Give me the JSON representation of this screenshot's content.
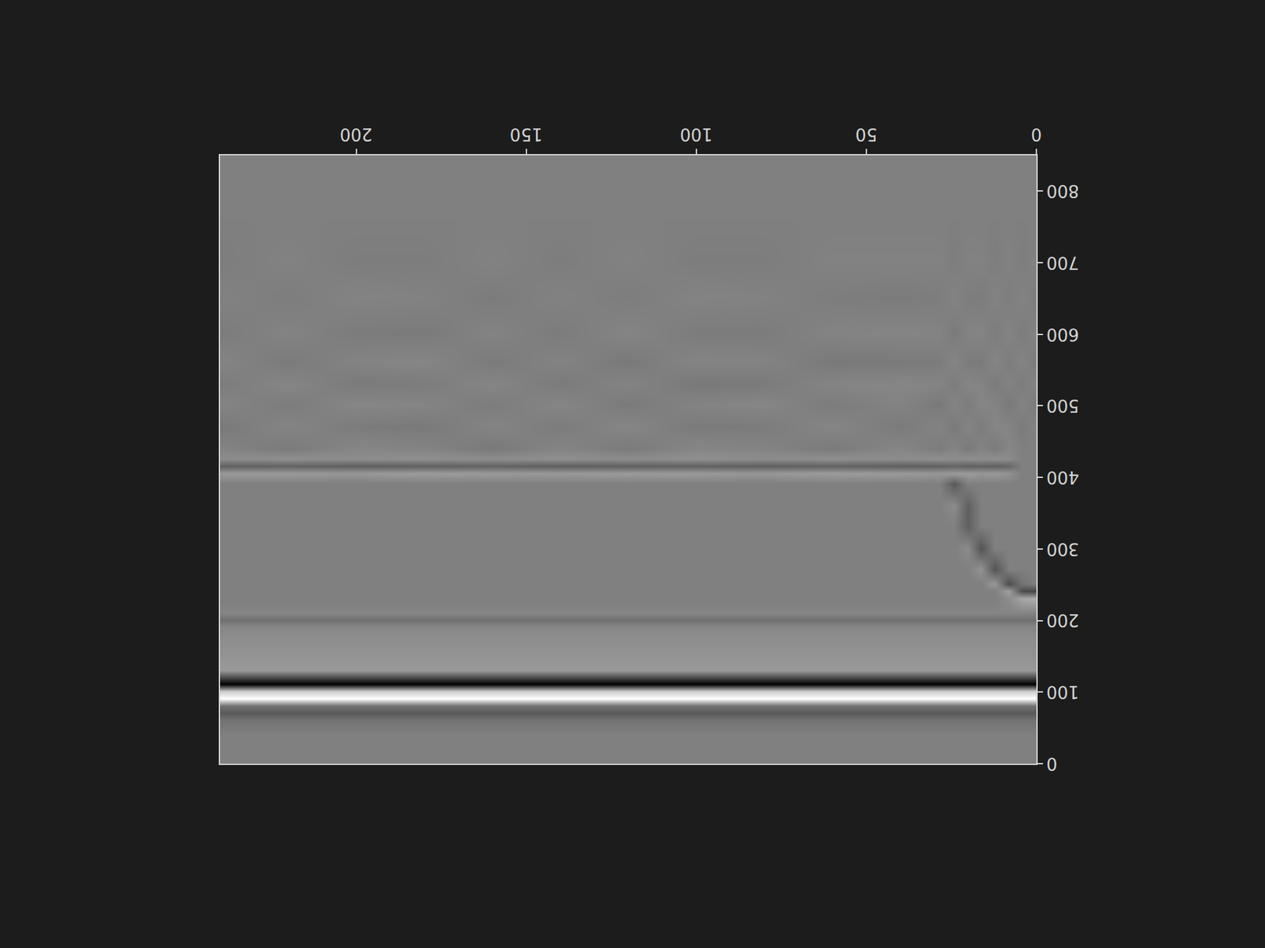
{
  "chart_data": {
    "type": "heatmap",
    "x": [
      0,
      4,
      8,
      12,
      16,
      20,
      24,
      28,
      40,
      60,
      80,
      100,
      120,
      140,
      160,
      180,
      200,
      220,
      240
    ],
    "y": [
      0,
      20,
      40,
      60,
      70,
      80,
      90,
      100,
      110,
      120,
      130,
      150,
      170,
      190,
      200,
      210,
      230,
      240,
      250,
      270,
      300,
      330,
      360,
      390,
      405,
      415,
      425,
      440,
      470,
      500,
      530,
      560,
      600,
      650,
      700,
      760,
      850
    ],
    "z": [
      [
        0,
        0,
        0,
        0,
        0,
        0,
        0,
        0,
        0,
        0,
        0,
        0,
        0,
        0,
        0,
        0,
        0,
        0,
        0
      ],
      [
        0,
        0,
        0,
        0,
        0,
        0,
        0,
        0,
        0,
        0,
        0,
        0,
        0,
        0,
        0,
        0,
        0,
        0,
        0
      ],
      [
        0,
        0,
        0,
        0,
        0,
        0,
        0,
        0,
        0,
        0,
        0,
        0,
        0,
        0,
        0,
        0,
        0,
        0,
        0
      ],
      [
        -0.1,
        -0.1,
        -0.1,
        -0.1,
        -0.1,
        -0.1,
        -0.1,
        -0.1,
        -0.1,
        -0.1,
        -0.1,
        -0.1,
        -0.1,
        -0.1,
        -0.1,
        -0.1,
        -0.1,
        -0.1,
        -0.1
      ],
      [
        -0.3,
        -0.3,
        -0.3,
        -0.3,
        -0.3,
        -0.3,
        -0.3,
        -0.3,
        -0.3,
        -0.3,
        -0.3,
        -0.3,
        -0.3,
        -0.3,
        -0.3,
        -0.3,
        -0.3,
        -0.3,
        -0.3
      ],
      [
        -0.1,
        -0.1,
        -0.1,
        -0.1,
        -0.1,
        -0.1,
        -0.1,
        -0.1,
        -0.1,
        -0.1,
        -0.1,
        -0.1,
        -0.1,
        -0.1,
        -0.1,
        -0.1,
        -0.1,
        -0.1,
        -0.1
      ],
      [
        1,
        1,
        1,
        1,
        1,
        1,
        1,
        1,
        1,
        1,
        1,
        1,
        1,
        1,
        1,
        1,
        1,
        1,
        1
      ],
      [
        0.6,
        0.6,
        0.6,
        0.6,
        0.6,
        0.6,
        0.6,
        0.6,
        0.6,
        0.6,
        0.6,
        0.6,
        0.6,
        0.6,
        0.6,
        0.6,
        0.6,
        0.6,
        0.6
      ],
      [
        -1,
        -1,
        -1,
        -1,
        -1,
        -1,
        -1,
        -1,
        -1,
        -1,
        -1,
        -1,
        -1,
        -1,
        -1,
        -1,
        -1,
        -1,
        -1
      ],
      [
        -0.4,
        -0.4,
        -0.4,
        -0.4,
        -0.4,
        -0.4,
        -0.4,
        -0.4,
        -0.4,
        -0.4,
        -0.4,
        -0.4,
        -0.4,
        -0.4,
        -0.4,
        -0.4,
        -0.4,
        -0.4,
        -0.4
      ],
      [
        0.2,
        0.2,
        0.2,
        0.2,
        0.2,
        0.2,
        0.2,
        0.2,
        0.2,
        0.2,
        0.2,
        0.2,
        0.2,
        0.2,
        0.2,
        0.2,
        0.2,
        0.2,
        0.2
      ],
      [
        0.15,
        0.15,
        0.15,
        0.15,
        0.15,
        0.15,
        0.15,
        0.15,
        0.15,
        0.15,
        0.15,
        0.15,
        0.15,
        0.15,
        0.15,
        0.15,
        0.15,
        0.15,
        0.15
      ],
      [
        0.12,
        0.12,
        0.12,
        0.12,
        0.12,
        0.12,
        0.12,
        0.12,
        0.12,
        0.12,
        0.12,
        0.12,
        0.12,
        0.12,
        0.12,
        0.12,
        0.12,
        0.12,
        0.12
      ],
      [
        0.05,
        0.05,
        0.05,
        0.05,
        0.05,
        0.05,
        0.05,
        0.05,
        0.05,
        0.05,
        0.05,
        0.05,
        0.05,
        0.05,
        0.05,
        0.05,
        0.05,
        0.05,
        0.05
      ],
      [
        -0.12,
        -0.12,
        -0.12,
        -0.12,
        -0.12,
        -0.12,
        -0.12,
        -0.12,
        -0.12,
        -0.12,
        -0.12,
        -0.12,
        -0.12,
        -0.12,
        -0.12,
        -0.12,
        -0.12,
        -0.12,
        -0.12
      ],
      [
        0.04,
        0.04,
        0.04,
        0.04,
        0.04,
        0.04,
        0.04,
        0.04,
        0.04,
        0.04,
        0.04,
        0.04,
        0.04,
        0.04,
        0.04,
        0.04,
        0.04,
        0.04,
        0.04
      ],
      [
        0.35,
        0.3,
        0.1,
        0,
        0,
        0,
        0,
        0,
        0,
        0,
        0,
        0,
        0,
        0,
        0,
        0,
        0,
        0,
        0
      ],
      [
        -0.45,
        -0.4,
        0.25,
        0,
        0,
        0,
        0,
        0,
        0,
        0,
        0,
        0,
        0,
        0,
        0,
        0,
        0,
        0,
        0
      ],
      [
        0,
        -0.1,
        -0.4,
        0.2,
        0,
        0,
        0,
        0,
        0,
        0,
        0,
        0,
        0,
        0,
        0,
        0,
        0,
        0,
        0
      ],
      [
        0,
        0,
        0,
        -0.35,
        0.15,
        0,
        0,
        0,
        0,
        0,
        0,
        0,
        0,
        0,
        0,
        0,
        0,
        0,
        0
      ],
      [
        0,
        0,
        0,
        0,
        -0.35,
        0.1,
        0,
        0,
        0,
        0,
        0,
        0,
        0,
        0,
        0,
        0,
        0,
        0,
        0
      ],
      [
        0,
        0,
        0,
        0,
        0,
        -0.25,
        0,
        0,
        0,
        0,
        0,
        0,
        0,
        0,
        0,
        0,
        0,
        0,
        0
      ],
      [
        0,
        0,
        0,
        0,
        0,
        -0.25,
        0.1,
        0,
        0,
        0,
        0,
        0,
        0,
        0,
        0,
        0,
        0,
        0,
        0
      ],
      [
        0,
        0,
        0,
        0,
        0,
        0,
        -0.3,
        0,
        0,
        0,
        0,
        0,
        0,
        0,
        0,
        0,
        0,
        0,
        0
      ],
      [
        0,
        0,
        0.15,
        0.2,
        0.18,
        0.22,
        0.2,
        0.18,
        0.2,
        0.22,
        0.18,
        0.2,
        0.21,
        0.19,
        0.2,
        0.22,
        0.18,
        0.2,
        0.2
      ],
      [
        0,
        0,
        -0.2,
        -0.25,
        -0.22,
        -0.25,
        -0.2,
        -0.24,
        -0.25,
        -0.22,
        -0.25,
        -0.23,
        -0.24,
        -0.25,
        -0.22,
        -0.24,
        -0.25,
        -0.22,
        -0.24
      ],
      [
        0,
        0,
        0.1,
        0.12,
        0.1,
        0.12,
        0.1,
        0.12,
        0.1,
        0.12,
        0.1,
        0.12,
        0.1,
        0.12,
        0.1,
        0.12,
        0.1,
        0.12,
        0.1
      ],
      [
        0,
        0,
        0.05,
        -0.04,
        0.03,
        -0.05,
        0.04,
        -0.03,
        0.05,
        -0.04,
        0.03,
        0.05,
        -0.04,
        0.04,
        -0.05,
        0.03,
        0.05,
        -0.04,
        0.03
      ],
      [
        0.03,
        -0.04,
        0.04,
        0.05,
        -0.03,
        0.04,
        -0.05,
        0.03,
        -0.04,
        0.05,
        -0.03,
        -0.04,
        0.05,
        -0.03,
        0.04,
        -0.05,
        -0.03,
        0.04,
        -0.05
      ],
      [
        -0.04,
        0.03,
        -0.05,
        0.03,
        0.05,
        -0.03,
        0.04,
        -0.05,
        0.03,
        -0.03,
        0.05,
        0.03,
        -0.04,
        0.05,
        -0.03,
        0.04,
        0.05,
        -0.03,
        0.04
      ],
      [
        0.04,
        -0.03,
        0.03,
        -0.04,
        0.03,
        0.05,
        -0.03,
        0.04,
        0.05,
        0.04,
        -0.04,
        -0.05,
        0.03,
        -0.04,
        0.05,
        -0.03,
        -0.04,
        0.05,
        -0.03
      ],
      [
        -0.03,
        0.04,
        -0.03,
        0.05,
        -0.04,
        -0.03,
        0.05,
        -0.03,
        -0.04,
        -0.05,
        0.03,
        0.04,
        -0.05,
        0.03,
        -0.04,
        0.05,
        0.03,
        -0.04,
        0.04
      ],
      [
        0.03,
        -0.03,
        0.04,
        -0.03,
        0.04,
        0.03,
        -0.04,
        0.03,
        0.04,
        0.03,
        -0.03,
        -0.03,
        0.04,
        -0.03,
        0.03,
        -0.04,
        -0.03,
        0.03,
        -0.03
      ],
      [
        -0.02,
        0.03,
        -0.02,
        0.03,
        -0.03,
        -0.02,
        0.03,
        -0.02,
        -0.03,
        -0.02,
        0.02,
        0.03,
        -0.02,
        0.02,
        -0.03,
        0.02,
        0.03,
        -0.02,
        0.02
      ],
      [
        0.02,
        -0.02,
        0.02,
        -0.02,
        0.02,
        0.02,
        -0.02,
        0.02,
        0.02,
        0.02,
        -0.02,
        -0.02,
        0.02,
        -0.02,
        0.02,
        -0.02,
        -0.02,
        0.02,
        -0.02
      ],
      [
        0,
        0,
        0,
        0,
        0,
        0,
        0,
        0,
        0,
        0,
        0,
        0,
        0,
        0,
        0,
        0,
        0,
        0,
        0
      ],
      [
        0,
        0,
        0,
        0,
        0,
        0,
        0,
        0,
        0,
        0,
        0,
        0,
        0,
        0,
        0,
        0,
        0,
        0,
        0
      ]
    ],
    "zlim": [
      -1,
      1
    ],
    "xlim": [
      0,
      240
    ],
    "ylim": [
      850,
      0
    ],
    "xticks": [
      0,
      50,
      100,
      150,
      200
    ],
    "yticks": [
      0,
      100,
      200,
      300,
      400,
      500,
      600,
      700,
      800
    ],
    "grid": false
  }
}
